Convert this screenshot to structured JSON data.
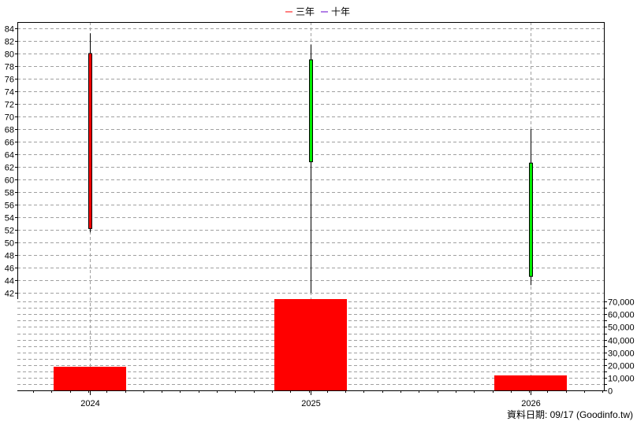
{
  "legend": [
    {
      "label": "三年",
      "color": "#ff0000"
    },
    {
      "label": "十年",
      "color": "#6600cc"
    }
  ],
  "footer": "資料日期: 09/17  (Goodinfo.tw)",
  "chart_data": [
    {
      "type": "candlestick",
      "categories": [
        "2024",
        "2025",
        "2026"
      ],
      "y_ticks": [
        42,
        44,
        46,
        48,
        50,
        52,
        54,
        56,
        58,
        60,
        62,
        64,
        66,
        68,
        70,
        72,
        74,
        76,
        78,
        80,
        82,
        84
      ],
      "ylim": [
        41,
        85
      ],
      "grid": true,
      "candles": [
        {
          "x": "2024",
          "open": 52.2,
          "close": 80.0,
          "high": 83.2,
          "low": 51.6,
          "color": "#ff0000"
        },
        {
          "x": "2025",
          "open": 79.0,
          "close": 62.8,
          "high": 81.4,
          "low": 42.0,
          "color": "#00ee00"
        },
        {
          "x": "2026",
          "open": 62.6,
          "close": 44.6,
          "high": 68.0,
          "low": 43.2,
          "color": "#00ee00"
        }
      ]
    },
    {
      "type": "bar",
      "categories": [
        "2024",
        "2025",
        "2026"
      ],
      "values": [
        18600,
        72000,
        11800
      ],
      "y_ticks": [
        "0",
        "10,000",
        "20,000",
        "30,000",
        "40,000",
        "50,000",
        "60,000",
        "70,000"
      ],
      "ylim": [
        0,
        72000
      ],
      "color": "#ff0000",
      "grid": true
    }
  ]
}
